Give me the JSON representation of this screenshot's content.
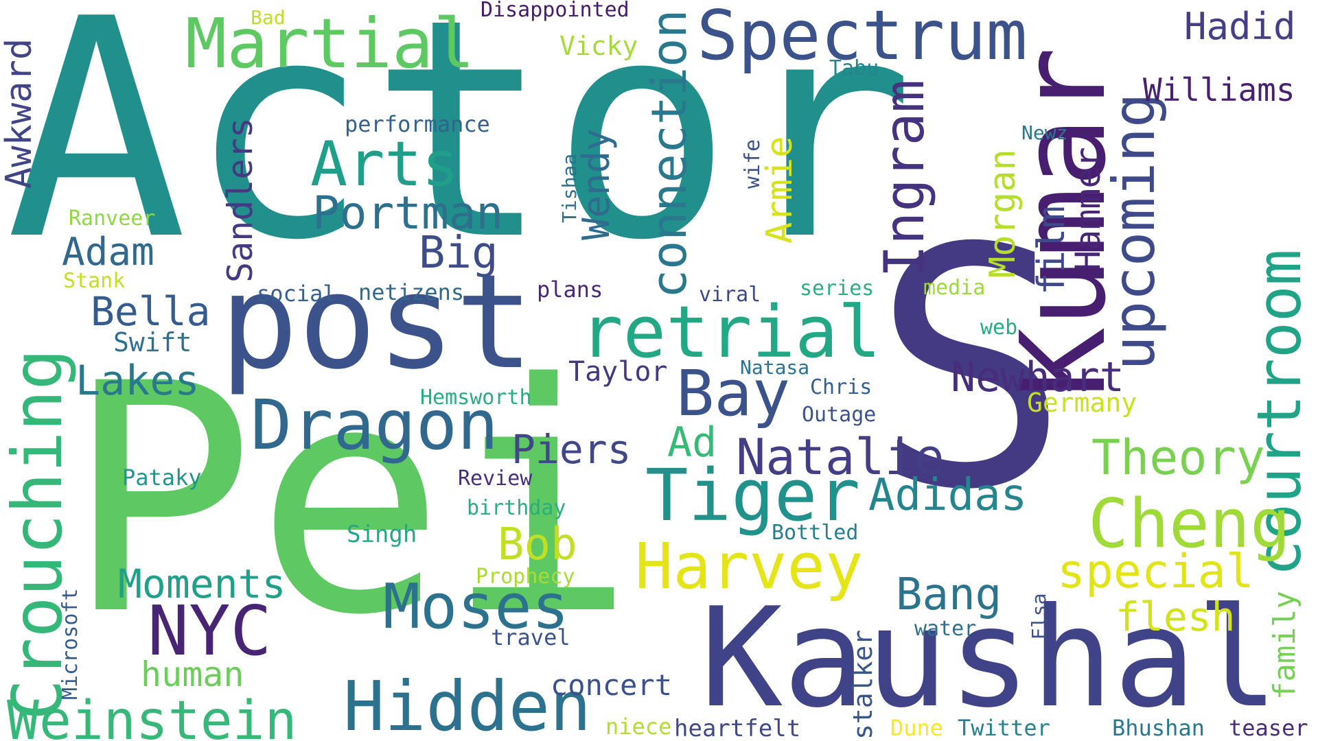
{
  "words": [
    {
      "text": "Actor",
      "color": "#218f8b"
    },
    {
      "text": "S",
      "color": "#443a83"
    },
    {
      "text": "Pei",
      "color": "#5ec962"
    },
    {
      "text": "post",
      "color": "#3b528b"
    },
    {
      "text": "Kaushal",
      "color": "#404387"
    },
    {
      "text": "Kumar",
      "color": "#481f70"
    },
    {
      "text": "Martial",
      "color": "#5ec962"
    },
    {
      "text": "Spectrum",
      "color": "#3b528b"
    },
    {
      "text": "upcoming",
      "color": "#3e4a89"
    },
    {
      "text": "courtroom",
      "color": "#20a386"
    },
    {
      "text": "retrial",
      "color": "#22a884"
    },
    {
      "text": "Crouching",
      "color": "#35b779"
    },
    {
      "text": "Dragon",
      "color": "#31688e"
    },
    {
      "text": "Tiger",
      "color": "#21918c"
    },
    {
      "text": "Hidden",
      "color": "#2c718e"
    },
    {
      "text": "Weinstein",
      "color": "#37b878"
    },
    {
      "text": "Harvey",
      "color": "#e5e419"
    },
    {
      "text": "Cheng",
      "color": "#a0da39"
    },
    {
      "text": "Arts",
      "color": "#1f9e89"
    },
    {
      "text": "Bay",
      "color": "#3b528b"
    },
    {
      "text": "connection",
      "color": "#2a788e"
    },
    {
      "text": "Ingram",
      "color": "#46337f"
    },
    {
      "text": "Natalie",
      "color": "#433e85"
    },
    {
      "text": "Moses",
      "color": "#2c728e"
    },
    {
      "text": "NYC",
      "color": "#482475"
    },
    {
      "text": "Portman",
      "color": "#2d708e"
    },
    {
      "text": "Theory",
      "color": "#7ad151"
    },
    {
      "text": "special",
      "color": "#e2e418"
    },
    {
      "text": "Newhart",
      "color": "#472d7b"
    },
    {
      "text": "Adidas",
      "color": "#25858e"
    },
    {
      "text": "Moments",
      "color": "#1fa088"
    },
    {
      "text": "Lakes",
      "color": "#2a788e"
    },
    {
      "text": "Sandlers",
      "color": "#443983"
    },
    {
      "text": "Awkward",
      "color": "#414487"
    },
    {
      "text": "Hadid",
      "color": "#433e85"
    },
    {
      "text": "Williams",
      "color": "#482071"
    },
    {
      "text": "Adam",
      "color": "#31688e"
    },
    {
      "text": "Big",
      "color": "#3e4c8a"
    },
    {
      "text": "Bella",
      "color": "#365c8d"
    },
    {
      "text": "Piers",
      "color": "#404688"
    },
    {
      "text": "Bob",
      "color": "#c0df25"
    },
    {
      "text": "Bang",
      "color": "#2c738e"
    },
    {
      "text": "flesh",
      "color": "#d2e21b"
    },
    {
      "text": "family",
      "color": "#75d054"
    },
    {
      "text": "human",
      "color": "#6ccd5a"
    },
    {
      "text": "film",
      "color": "#3e4a89"
    },
    {
      "text": "Hammer",
      "color": "#482677"
    },
    {
      "text": "Morgan",
      "color": "#b5de2b"
    },
    {
      "text": "Wendy",
      "color": "#2f6b8e"
    },
    {
      "text": "Armie",
      "color": "#d8e219"
    },
    {
      "text": "Ad",
      "color": "#38b977"
    },
    {
      "text": "concert",
      "color": "#3b518b"
    },
    {
      "text": "stalker",
      "color": "#39558c"
    },
    {
      "text": "Taylor",
      "color": "#453882"
    },
    {
      "text": "Swift",
      "color": "#2d718e"
    },
    {
      "text": "performance",
      "color": "#33638d"
    },
    {
      "text": "Disappointed",
      "color": "#481a6c"
    },
    {
      "text": "Vicky",
      "color": "#a5db36"
    },
    {
      "text": "Tabu",
      "color": "#25858e"
    },
    {
      "text": "Bad",
      "color": "#bddf26"
    },
    {
      "text": "Ranveer",
      "color": "#8fd744"
    },
    {
      "text": "Stank",
      "color": "#c2df23"
    },
    {
      "text": "social",
      "color": "#34608d"
    },
    {
      "text": "netizens",
      "color": "#31688e"
    },
    {
      "text": "plans",
      "color": "#482878"
    },
    {
      "text": "viral",
      "color": "#3e4989"
    },
    {
      "text": "series",
      "color": "#2ab07f"
    },
    {
      "text": "media",
      "color": "#9dd93b"
    },
    {
      "text": "web",
      "color": "#25ac82"
    },
    {
      "text": "Newz",
      "color": "#2a788e"
    },
    {
      "text": "wife",
      "color": "#3b528b"
    },
    {
      "text": "Tishaa",
      "color": "#2e6e8e"
    },
    {
      "text": "Natasa",
      "color": "#2c728e"
    },
    {
      "text": "Chris",
      "color": "#355f8d"
    },
    {
      "text": "Outage",
      "color": "#3b528b"
    },
    {
      "text": "Germany",
      "color": "#cae11f"
    },
    {
      "text": "Hemsworth",
      "color": "#27ad81"
    },
    {
      "text": "Review",
      "color": "#472f7d"
    },
    {
      "text": "birthday",
      "color": "#29af7f"
    },
    {
      "text": "Pataky",
      "color": "#1f958b"
    },
    {
      "text": "Singh",
      "color": "#22a785"
    },
    {
      "text": "Bottled",
      "color": "#277f8e"
    },
    {
      "text": "Prophecy",
      "color": "#a8db34"
    },
    {
      "text": "travel",
      "color": "#3a538b"
    },
    {
      "text": "water",
      "color": "#2e6f8e"
    },
    {
      "text": "Elsa",
      "color": "#3c4f8a"
    },
    {
      "text": "Microsoft",
      "color": "#375a8c"
    },
    {
      "text": "niece",
      "color": "#b0dd2f"
    },
    {
      "text": "heartfelt",
      "color": "#3f4889"
    },
    {
      "text": "Dune",
      "color": "#fde725"
    },
    {
      "text": "Twitter",
      "color": "#26828e"
    },
    {
      "text": "Bhushan",
      "color": "#2a788e"
    },
    {
      "text": "teaser",
      "color": "#472c7a"
    }
  ]
}
